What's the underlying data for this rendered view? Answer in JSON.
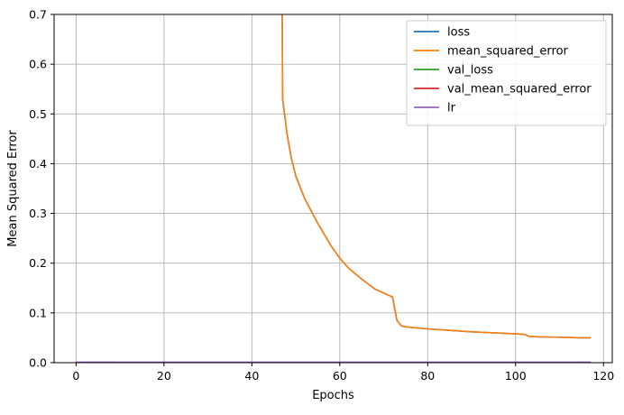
{
  "chart_data": {
    "type": "line",
    "title": "",
    "xlabel": "Epochs",
    "ylabel": "Mean Squared Error",
    "xlim": [
      -5,
      122
    ],
    "ylim": [
      0,
      0.7
    ],
    "xticks": [
      0,
      20,
      40,
      60,
      80,
      100,
      120
    ],
    "yticks": [
      0.0,
      0.1,
      0.2,
      0.3,
      0.4,
      0.5,
      0.6,
      0.7
    ],
    "grid": true,
    "legend_position": "top-right",
    "series": [
      {
        "name": "loss",
        "color": "#1f77b4",
        "x": [
          46.9,
          47,
          48,
          49,
          50,
          52,
          55,
          58,
          60,
          62,
          65,
          68,
          70,
          72,
          73,
          74,
          75,
          80,
          85,
          90,
          95,
          100,
          102,
          103,
          105,
          110,
          115,
          117
        ],
        "y": [
          0.7,
          0.53,
          0.46,
          0.41,
          0.375,
          0.33,
          0.28,
          0.235,
          0.21,
          0.19,
          0.168,
          0.148,
          0.14,
          0.132,
          0.085,
          0.074,
          0.072,
          0.068,
          0.065,
          0.062,
          0.06,
          0.058,
          0.057,
          0.053,
          0.052,
          0.051,
          0.05,
          0.05
        ]
      },
      {
        "name": "mean_squared_error",
        "color": "#ff7f0e",
        "x": [
          46.9,
          47,
          48,
          49,
          50,
          52,
          55,
          58,
          60,
          62,
          65,
          68,
          70,
          72,
          73,
          74,
          75,
          80,
          85,
          90,
          95,
          100,
          102,
          103,
          105,
          110,
          115,
          117
        ],
        "y": [
          0.7,
          0.53,
          0.46,
          0.41,
          0.375,
          0.33,
          0.28,
          0.235,
          0.21,
          0.19,
          0.168,
          0.148,
          0.14,
          0.132,
          0.085,
          0.074,
          0.072,
          0.068,
          0.065,
          0.062,
          0.06,
          0.058,
          0.057,
          0.053,
          0.052,
          0.051,
          0.05,
          0.05
        ]
      },
      {
        "name": "val_loss",
        "color": "#2ca02c",
        "x": [],
        "y": []
      },
      {
        "name": "val_mean_squared_error",
        "color": "#d62728",
        "x": [],
        "y": []
      },
      {
        "name": "lr",
        "color": "#9467bd",
        "x": [
          0,
          117
        ],
        "y": [
          0.001,
          0.001
        ]
      }
    ]
  }
}
